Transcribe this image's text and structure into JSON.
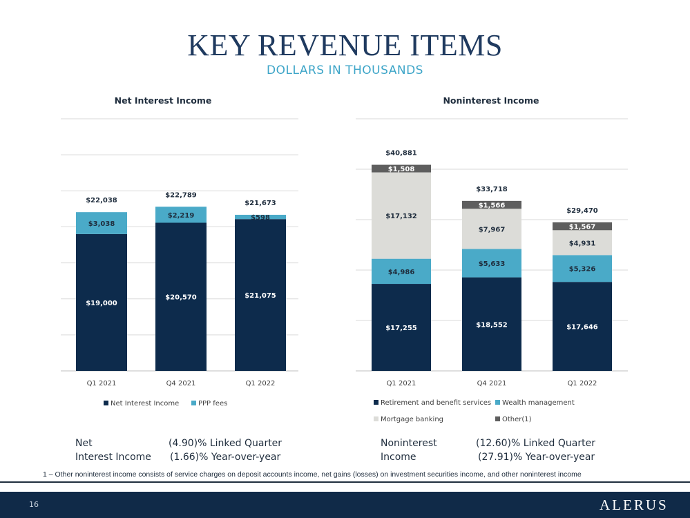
{
  "page": {
    "title": "KEY REVENUE ITEMS",
    "subtitle": "DOLLARS IN THOUSANDS",
    "footnote": "1 – Other noninterest income consists of service charges on deposit accounts income, net gains (losses) on investment securities income, and other noninterest income",
    "page_number": "16",
    "logo_text": "ALERUS"
  },
  "summary_left": {
    "line1_label": "Net",
    "line2_label": "Interest Income",
    "line1_value": "(4.90)% Linked Quarter",
    "line2_value": "(1.66)% Year-over-year"
  },
  "summary_right": {
    "line1_label": "Noninterest",
    "line2_label": "Income",
    "line1_value": "(12.60)% Linked Quarter",
    "line2_value": "(27.91)% Year-over-year"
  },
  "chart_data": [
    {
      "type": "bar",
      "stacked": true,
      "title": "Net Interest Income",
      "categories": [
        "Q1 2021",
        "Q4 2021",
        "Q1 2022"
      ],
      "series": [
        {
          "name": "Net Interest Income",
          "values": [
            19000,
            20570,
            21075
          ],
          "labels": [
            "$19,000",
            "$20,570",
            "$21,075"
          ],
          "color": "#0d2b4c"
        },
        {
          "name": "PPP fees",
          "values": [
            3038,
            2219,
            598
          ],
          "labels": [
            "$3,038",
            "$2,219",
            "$598"
          ],
          "color": "#4aaac8"
        }
      ],
      "totals": [
        "$22,038",
        "$22,789",
        "$21,673"
      ],
      "ylim": [
        0,
        35000
      ],
      "grid": true,
      "legend": "bottom"
    },
    {
      "type": "bar",
      "stacked": true,
      "title": "Noninterest Income",
      "categories": [
        "Q1 2021",
        "Q4 2021",
        "Q1 2022"
      ],
      "series": [
        {
          "name": "Retirement and benefit services",
          "values": [
            17255,
            18552,
            17646
          ],
          "labels": [
            "$17,255",
            "$18,552",
            "$17,646"
          ],
          "color": "#0d2b4c"
        },
        {
          "name": "Wealth management",
          "values": [
            4986,
            5633,
            5326
          ],
          "labels": [
            "$4,986",
            "$5,633",
            "$5,326"
          ],
          "color": "#4aaac8"
        },
        {
          "name": "Mortgage banking",
          "values": [
            17132,
            7967,
            4931
          ],
          "labels": [
            "$17,132",
            "$7,967",
            "$4,931"
          ],
          "color": "#dcdcd8"
        },
        {
          "name": "Other(1)",
          "values": [
            1508,
            1566,
            1567
          ],
          "labels": [
            "$1,508",
            "$1,566",
            "$1,567"
          ],
          "color": "#5e5e5e"
        }
      ],
      "totals": [
        "$40,881",
        "$33,718",
        "$29,470"
      ],
      "ylim": [
        0,
        50000
      ],
      "grid": true,
      "legend": "bottom"
    }
  ]
}
